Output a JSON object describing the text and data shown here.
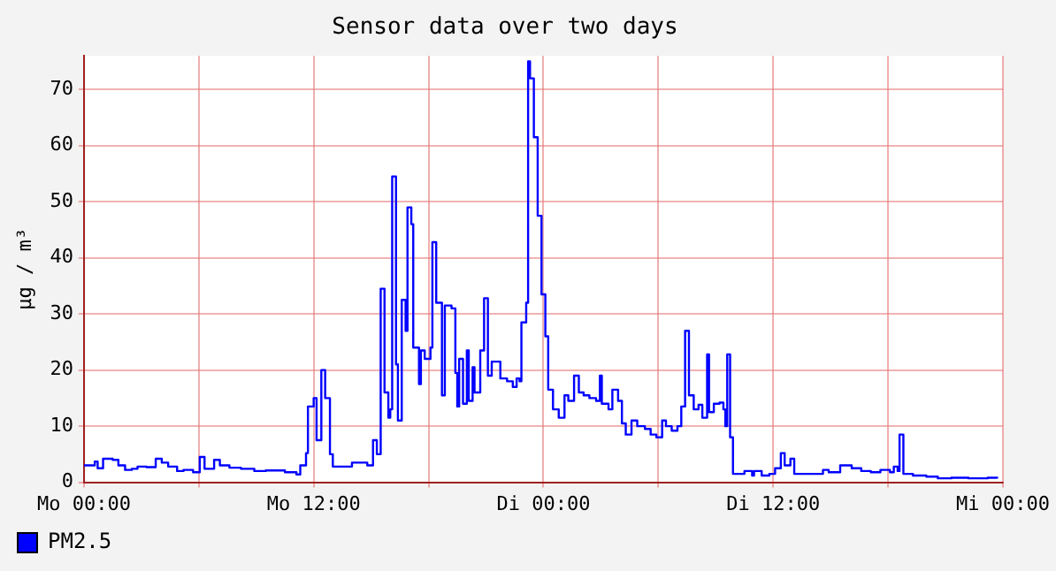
{
  "chart_data": {
    "type": "step",
    "title": "Sensor data over two days",
    "ylabel": "µg / m³",
    "xlim": [
      "--01-01T00:00",
      "--01-03T00:00"
    ],
    "xticks": [
      {
        "value": "--01-01T00:00",
        "label": "Mo 00:00"
      },
      {
        "value": "--01-01T06:00",
        "label": null
      },
      {
        "value": "--01-01T12:00",
        "label": "Mo 12:00"
      },
      {
        "value": "--01-01T18:00",
        "label": null
      },
      {
        "value": "--01-02T00:00",
        "label": "Di 00:00"
      },
      {
        "value": "--01-02T06:00",
        "label": null
      },
      {
        "value": "--01-02T12:00",
        "label": "Di 12:00"
      },
      {
        "value": "--01-02T18:00",
        "label": null
      },
      {
        "value": "--01-03T00:00",
        "label": "Mi 00:00"
      }
    ],
    "ylim": [
      0,
      76
    ],
    "yticks": [
      0,
      10,
      20,
      30,
      40,
      50,
      60,
      70
    ],
    "grid": true,
    "legend": "bottom left",
    "series": [
      {
        "name": "PM2.5",
        "color": "#0000ff",
        "x": [
          "--01-01T00:00",
          "--01-01T00:34",
          "--01-01T00:43",
          "--01-01T01:00",
          "--01-01T01:30",
          "--01-01T01:48",
          "--01-01T02:09",
          "--01-01T02:30",
          "--01-01T02:48",
          "--01-01T03:16",
          "--01-01T03:45",
          "--01-01T04:04",
          "--01-01T04:24",
          "--01-01T04:52",
          "--01-01T05:12",
          "--01-01T05:42",
          "--01-01T06:03",
          "--01-01T06:18",
          "--01-01T06:48",
          "--01-01T07:06",
          "--01-01T07:36",
          "--01-01T08:12",
          "--01-01T08:54",
          "--01-01T09:30",
          "--01-01T10:30",
          "--01-01T11:06",
          "--01-01T11:18",
          "--01-01T11:36",
          "--01-01T11:42",
          "--01-01T12:00",
          "--01-01T12:09",
          "--01-01T12:24",
          "--01-01T12:36",
          "--01-01T12:51",
          "--01-01T13:00",
          "--01-01T13:30",
          "--01-01T14:00",
          "--01-01T14:24",
          "--01-01T14:48",
          "--01-01T15:06",
          "--01-01T15:18",
          "--01-01T15:30",
          "--01-01T15:42",
          "--01-01T15:54",
          "--01-01T16:00",
          "--01-01T16:06",
          "--01-01T16:18",
          "--01-01T16:24",
          "--01-01T16:36",
          "--01-01T16:48",
          "--01-01T16:54",
          "--01-01T17:06",
          "--01-01T17:12",
          "--01-01T17:30",
          "--01-01T17:36",
          "--01-01T17:48",
          "--01-01T18:06",
          "--01-01T18:12",
          "--01-01T18:24",
          "--01-01T18:42",
          "--01-01T18:51",
          "--01-01T19:12",
          "--01-01T19:24",
          "--01-01T19:30",
          "--01-01T19:36",
          "--01-01T19:48",
          "--01-01T20:00",
          "--01-01T20:06",
          "--01-01T20:18",
          "--01-01T20:24",
          "--01-01T20:42",
          "--01-01T20:54",
          "--01-01T21:06",
          "--01-01T21:18",
          "--01-01T21:36",
          "--01-01T21:45",
          "--01-01T22:06",
          "--01-01T22:24",
          "--01-01T22:36",
          "--01-01T22:45",
          "--01-01T22:51",
          "--01-01T23:06",
          "--01-01T23:12",
          "--01-01T23:18",
          "--01-01T23:30",
          "--01-01T23:42",
          "--01-01T23:54",
          "--01-02T00:06",
          "--01-02T00:15",
          "--01-02T00:30",
          "--01-02T00:48",
          "--01-02T01:06",
          "--01-02T01:18",
          "--01-02T01:36",
          "--01-02T01:51",
          "--01-02T02:06",
          "--01-02T02:24",
          "--01-02T02:45",
          "--01-02T02:57",
          "--01-02T03:03",
          "--01-02T03:24",
          "--01-02T03:36",
          "--01-02T03:54",
          "--01-02T04:06",
          "--01-02T04:18",
          "--01-02T04:36",
          "--01-02T04:54",
          "--01-02T05:18",
          "--01-02T05:36",
          "--01-02T05:54",
          "--01-02T06:12",
          "--01-02T06:24",
          "--01-02T06:42",
          "--01-02T07:00",
          "--01-02T07:12",
          "--01-02T07:24",
          "--01-02T07:36",
          "--01-02T07:51",
          "--01-02T08:06",
          "--01-02T08:18",
          "--01-02T08:33",
          "--01-02T08:39",
          "--01-02T08:54",
          "--01-02T09:12",
          "--01-02T09:24",
          "--01-02T09:30",
          "--01-02T09:36",
          "--01-02T09:45",
          "--01-02T09:54",
          "--01-02T10:12",
          "--01-02T10:30",
          "--01-02T10:54",
          "--01-02T11:00",
          "--01-02T11:24",
          "--01-02T11:48",
          "--01-02T12:06",
          "--01-02T12:24",
          "--01-02T12:36",
          "--01-02T12:54",
          "--01-02T13:06",
          "--01-02T13:36",
          "--01-02T14:06",
          "--01-02T14:36",
          "--01-02T14:54",
          "--01-02T15:30",
          "--01-02T16:06",
          "--01-02T16:36",
          "--01-02T17:06",
          "--01-02T17:36",
          "--01-02T18:06",
          "--01-02T18:18",
          "--01-02T18:30",
          "--01-02T18:36",
          "--01-02T18:48",
          "--01-02T19:18",
          "--01-02T20:00",
          "--01-02T20:36",
          "--01-02T21:18",
          "--01-02T22:12",
          "--01-02T23:12",
          "--01-02T23:42"
        ],
        "values": [
          3.0,
          3.7,
          2.5,
          4.2,
          4.0,
          3.0,
          2.2,
          2.4,
          2.8,
          2.7,
          4.2,
          3.5,
          2.8,
          2.0,
          2.2,
          1.8,
          4.5,
          2.4,
          4.0,
          3.0,
          2.6,
          2.4,
          2.0,
          2.1,
          1.8,
          1.4,
          3.0,
          5.2,
          13.5,
          15.0,
          7.5,
          20.0,
          15.0,
          5.0,
          2.8,
          2.8,
          3.5,
          3.5,
          3.0,
          7.5,
          5.0,
          34.5,
          16,
          11.5,
          13,
          54.5,
          21,
          11,
          32.5,
          27,
          49,
          46,
          24,
          17.5,
          23.5,
          22,
          24,
          42.8,
          32,
          15.5,
          31.5,
          31,
          19.5,
          13.5,
          22,
          14,
          23.5,
          14.5,
          20.5,
          16,
          23.5,
          32.8,
          19,
          21.5,
          21.5,
          18.5,
          18,
          17,
          18.5,
          18,
          28.5,
          32,
          75,
          72,
          61.5,
          47.5,
          33.5,
          26,
          16.5,
          13,
          11.5,
          15.5,
          14.5,
          19,
          16,
          15.5,
          15,
          14.5,
          19,
          14,
          13,
          16.5,
          14.5,
          10.5,
          8.5,
          11,
          10,
          9.5,
          8.5,
          8,
          11,
          10,
          9.2,
          10,
          13.5,
          27,
          15.5,
          13,
          13.8,
          11.5,
          22.8,
          12.5,
          14,
          14.2,
          13,
          10,
          22.8,
          8,
          1.5,
          1.5,
          2,
          1.2,
          2,
          1.2,
          1.5,
          2.5,
          5.2,
          3,
          4.2,
          1.5,
          1.5,
          1.5,
          2.2,
          1.8,
          3,
          2.5,
          2,
          1.8,
          2.2,
          1.8,
          2.8,
          2,
          8.5,
          1.5,
          1.2,
          1,
          0.7,
          0.8,
          0.7,
          0.8,
          0.7
        ]
      }
    ]
  }
}
